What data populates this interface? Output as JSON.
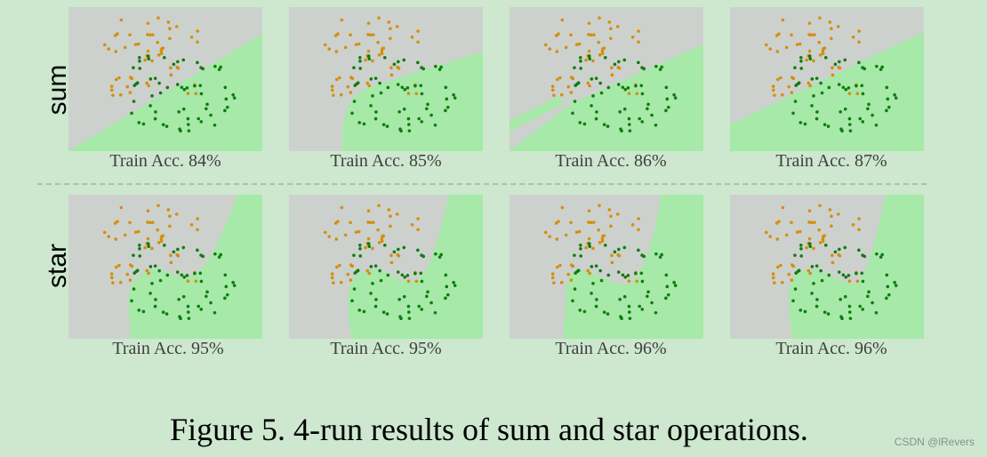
{
  "rows": [
    {
      "label": "sum",
      "panels": [
        {
          "acc_label": "Train Acc. 84%"
        },
        {
          "acc_label": "Train Acc. 85%"
        },
        {
          "acc_label": "Train Acc. 86%"
        },
        {
          "acc_label": "Train Acc. 87%"
        }
      ]
    },
    {
      "label": "star",
      "panels": [
        {
          "acc_label": "Train Acc. 95%"
        },
        {
          "acc_label": "Train Acc. 95%"
        },
        {
          "acc_label": "Train Acc. 96%"
        },
        {
          "acc_label": "Train Acc. 96%"
        }
      ]
    }
  ],
  "colors": {
    "background": "#cde8cf",
    "region_gray": "#cdd1cd",
    "region_green": "#a6e9a8",
    "class_orange": "#d38f0f",
    "class_green": "#0d7d0d"
  },
  "caption": "Figure 5. 4-run results of sum and star operations.",
  "watermark": "CSDN @lRevers"
}
